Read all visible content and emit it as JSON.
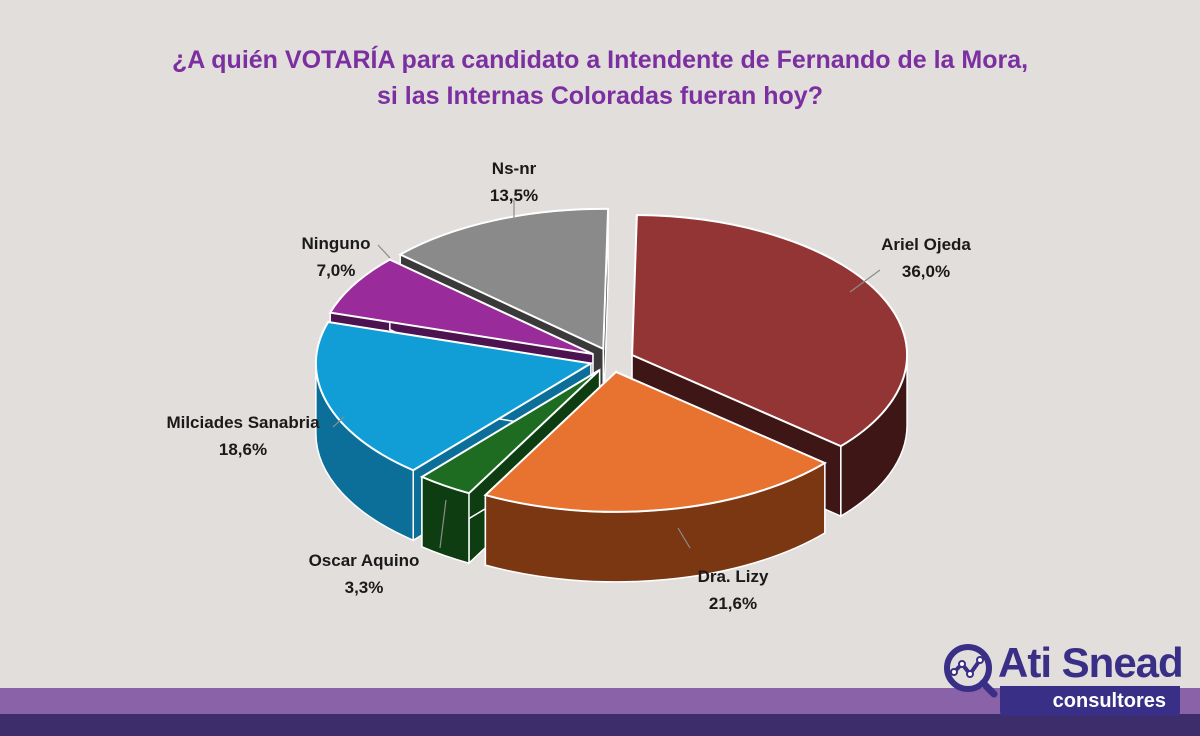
{
  "title_line1": "¿A quién VOTARÍA para candidato a Intendente de Fernando de la Mora,",
  "title_line2": "si las Internas Coloradas fueran hoy?",
  "chart_data": {
    "type": "pie",
    "title": "¿A quién VOTARÍA para candidato a Intendente de Fernando de la Mora, si las Internas Coloradas fueran hoy?",
    "slices": [
      {
        "label": "Ariel Ojeda",
        "value": 36.0,
        "value_label": "36,0%",
        "color": "#933535",
        "side": "#3e1616"
      },
      {
        "label": "Dra. Lizy",
        "value": 21.6,
        "value_label": "21,6%",
        "color": "#e8722f",
        "side": "#7a3712"
      },
      {
        "label": "Oscar Aquino",
        "value": 3.3,
        "value_label": "3,3%",
        "color": "#1e6b22",
        "side": "#0f3d12"
      },
      {
        "label": "Milciades Sanabria",
        "value": 18.6,
        "value_label": "18,6%",
        "color": "#119ed6",
        "side": "#0b6f9a"
      },
      {
        "label": "Ninguno",
        "value": 7.0,
        "value_label": "7,0%",
        "color": "#9a2b9a",
        "side": "#4d1250"
      },
      {
        "label": "Ns-nr",
        "value": 13.5,
        "value_label": "13,5%",
        "color": "#8a8a8a",
        "side": "#3a3a3a"
      }
    ]
  },
  "logo": {
    "name": "Ati Snead",
    "subtitle": "consultores"
  }
}
